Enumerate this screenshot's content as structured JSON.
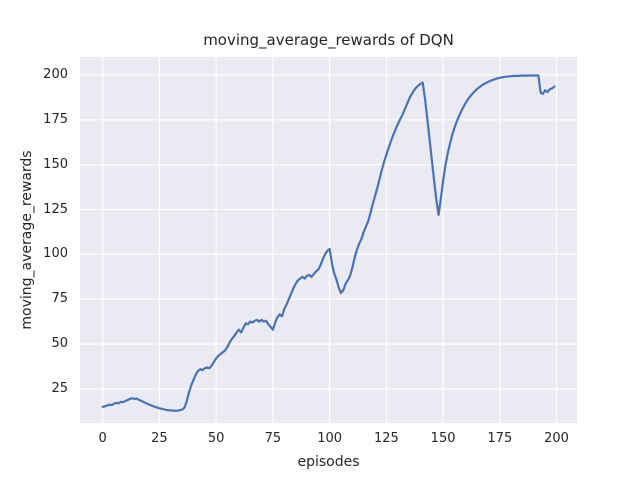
{
  "chart_data": {
    "type": "line",
    "title": "moving_average_rewards of DQN",
    "xlabel": "episodes",
    "ylabel": "moving_average_rewards",
    "style": "seaborn-darkgrid",
    "grid": true,
    "legend": false,
    "xlim": [
      -10,
      209
    ],
    "ylim": [
      6,
      210
    ],
    "x_ticks": [
      0,
      25,
      50,
      75,
      100,
      125,
      150,
      175,
      200
    ],
    "y_ticks": [
      25,
      50,
      75,
      100,
      125,
      150,
      175,
      200
    ],
    "colors": {
      "figure_background": "#ffffff",
      "axes_background": "#eaeaf2",
      "grid": "#ffffff",
      "line": "#4c72b0",
      "text": "#262626"
    },
    "series": [
      {
        "name": "moving_average_rewards",
        "color": "#4c72b0",
        "x": [
          0,
          1,
          2,
          3,
          4,
          5,
          6,
          7,
          8,
          9,
          10,
          11,
          12,
          13,
          14,
          15,
          16,
          17,
          18,
          19,
          20,
          21,
          22,
          23,
          24,
          25,
          26,
          27,
          28,
          29,
          30,
          31,
          32,
          33,
          34,
          35,
          36,
          37,
          38,
          39,
          40,
          41,
          42,
          43,
          44,
          45,
          46,
          47,
          48,
          49,
          50,
          51,
          52,
          53,
          54,
          55,
          56,
          57,
          58,
          59,
          60,
          61,
          62,
          63,
          64,
          65,
          66,
          67,
          68,
          69,
          70,
          71,
          72,
          73,
          74,
          75,
          76,
          77,
          78,
          79,
          80,
          81,
          82,
          83,
          84,
          85,
          86,
          87,
          88,
          89,
          90,
          91,
          92,
          93,
          94,
          95,
          96,
          97,
          98,
          99,
          100,
          101,
          102,
          103,
          104,
          105,
          106,
          107,
          108,
          109,
          110,
          111,
          112,
          113,
          114,
          115,
          116,
          117,
          118,
          119,
          120,
          121,
          122,
          123,
          124,
          125,
          126,
          127,
          128,
          129,
          130,
          131,
          132,
          133,
          134,
          135,
          136,
          137,
          138,
          139,
          140,
          141,
          142,
          143,
          144,
          145,
          146,
          147,
          148,
          149,
          150,
          151,
          152,
          153,
          154,
          155,
          156,
          157,
          158,
          159,
          160,
          161,
          162,
          163,
          164,
          165,
          166,
          167,
          168,
          169,
          170,
          171,
          172,
          173,
          174,
          175,
          176,
          177,
          178,
          179,
          180,
          181,
          182,
          183,
          184,
          185,
          186,
          187,
          188,
          189,
          190,
          191,
          192,
          193,
          194,
          195,
          196,
          197,
          198,
          199
        ],
        "y": [
          15,
          15.3,
          15.8,
          16.2,
          16,
          16.8,
          17.2,
          17,
          17.8,
          17.6,
          18.3,
          18.8,
          19.4,
          19.8,
          19.4,
          19.6,
          18.9,
          18.3,
          17.7,
          17.1,
          16.5,
          16,
          15.5,
          15,
          14.6,
          14.2,
          13.9,
          13.6,
          13.3,
          13.1,
          13,
          12.9,
          12.8,
          12.9,
          13.1,
          13.5,
          14.5,
          18,
          23,
          27,
          30,
          33,
          35,
          36,
          35.5,
          36.5,
          37,
          36.5,
          38,
          40,
          42,
          43.5,
          44.5,
          45.5,
          46.5,
          48.5,
          51,
          53,
          54.5,
          56.5,
          58,
          56.5,
          59,
          61.5,
          61,
          62.5,
          62,
          63,
          63.5,
          62.5,
          63.5,
          62.5,
          63,
          61,
          59.5,
          58,
          62,
          65,
          66.5,
          65.5,
          69.5,
          72,
          75,
          78,
          81,
          83.5,
          85.5,
          86.5,
          87.5,
          86.5,
          88,
          88.5,
          87.5,
          89,
          90.5,
          91.5,
          94,
          97.5,
          100,
          102,
          103,
          95,
          89.5,
          86,
          81.5,
          78.5,
          80,
          83.5,
          85.5,
          88,
          92.5,
          98,
          102.5,
          106,
          108.5,
          112.5,
          115.5,
          118.5,
          123,
          128,
          132.5,
          137,
          142,
          147,
          151.5,
          155.5,
          159.5,
          163,
          166.5,
          169.5,
          172.5,
          175,
          177.5,
          180.5,
          183.5,
          186.5,
          189,
          191,
          192.8,
          194,
          195,
          195.8,
          187,
          176,
          164.5,
          153,
          141.5,
          130.5,
          122,
          131,
          141,
          149.5,
          156,
          161.5,
          166.5,
          170.5,
          174,
          177,
          179.8,
          182.3,
          184.5,
          186.5,
          188.2,
          189.7,
          191,
          192.2,
          193.2,
          194.1,
          194.9,
          195.6,
          196.2,
          196.8,
          197.3,
          197.7,
          198.1,
          198.4,
          198.7,
          198.9,
          199.1,
          199.2,
          199.3,
          199.4,
          199.5,
          199.5,
          199.6,
          199.6,
          199.6,
          199.6,
          199.7,
          199.7,
          199.7,
          199.7,
          199.7,
          190,
          189.5,
          191.5,
          190.5,
          192,
          192.5,
          193.5
        ]
      }
    ]
  }
}
